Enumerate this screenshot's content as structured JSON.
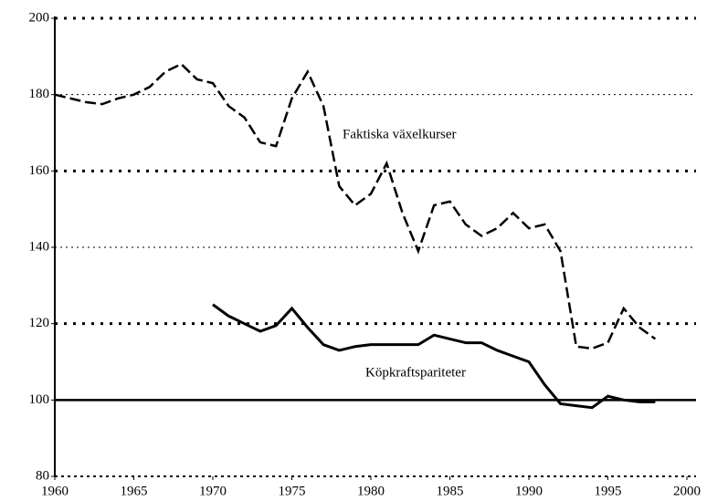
{
  "chart_data": {
    "type": "line",
    "xlim": [
      1960,
      2000
    ],
    "xticks": [
      1960,
      1965,
      1970,
      1975,
      1980,
      1985,
      1990,
      1995,
      2000
    ],
    "ylim": [
      80,
      200
    ],
    "yticks": [
      80,
      100,
      120,
      140,
      160,
      180,
      200
    ],
    "grid": true,
    "reference_line": 100,
    "series": [
      {
        "name": "Faktiska växelkurser",
        "color": "#000000",
        "dash": true,
        "x": [
          1960,
          1961,
          1962,
          1963,
          1964,
          1965,
          1966,
          1967,
          1968,
          1969,
          1970,
          1971,
          1972,
          1973,
          1974,
          1975,
          1976,
          1977,
          1978,
          1979,
          1980,
          1981,
          1982,
          1983,
          1984,
          1985,
          1986,
          1987,
          1988,
          1989,
          1990,
          1991,
          1992,
          1993,
          1994,
          1995,
          1996,
          1997,
          1998
        ],
        "values": [
          180,
          179,
          178,
          177.5,
          179,
          180,
          182,
          186,
          188,
          184,
          183,
          177,
          174,
          167.5,
          166.5,
          179,
          186,
          177,
          156,
          151,
          154,
          162,
          149,
          139,
          151,
          152,
          146,
          143,
          145,
          149,
          145,
          146,
          139,
          114,
          113.5,
          115,
          124,
          119,
          116
        ]
      },
      {
        "name": "Köpkraftspariteter",
        "color": "#000000",
        "dash": false,
        "x": [
          1970,
          1971,
          1972,
          1973,
          1974,
          1975,
          1976,
          1977,
          1978,
          1979,
          1980,
          1981,
          1982,
          1983,
          1984,
          1985,
          1986,
          1987,
          1988,
          1989,
          1990,
          1991,
          1992,
          1993,
          1994,
          1995,
          1996,
          1997,
          1998
        ],
        "values": [
          125,
          122,
          120,
          118,
          119.5,
          124,
          119,
          114.5,
          113,
          114,
          114.5,
          114.5,
          114.5,
          114.5,
          117,
          116,
          115,
          115,
          113,
          111.5,
          110,
          104,
          99,
          98.5,
          98,
          101,
          100,
          99.5,
          99.5
        ]
      }
    ]
  }
}
